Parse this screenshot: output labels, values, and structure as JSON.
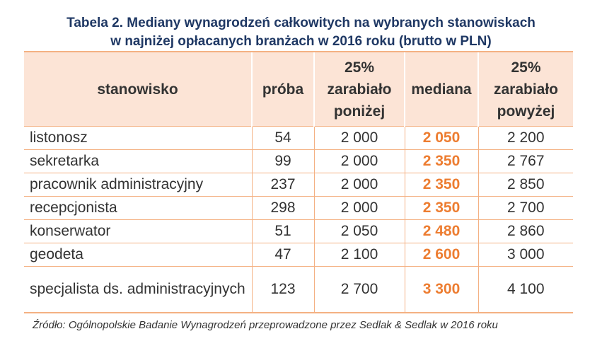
{
  "title": {
    "line1": "Tabela 2. Mediany wynagrodzeń całkowitych na wybranych stanowiskach",
    "line2": "w najniżej opłacanych branżach w 2016 roku (brutto w PLN)"
  },
  "headers": {
    "position": "stanowisko",
    "sample": "próba",
    "p25_line1": "25%",
    "p25_line2": "zarabiało",
    "p25_line3": "poniżej",
    "median": "mediana",
    "p75_line1": "25%",
    "p75_line2": "zarabiało",
    "p75_line3": "powyżej"
  },
  "rows": [
    {
      "position": "listonosz",
      "sample": "54",
      "p25": "2 000",
      "median": "2 050",
      "p75": "2 200"
    },
    {
      "position": "sekretarka",
      "sample": "99",
      "p25": "2 000",
      "median": "2 350",
      "p75": "2 767"
    },
    {
      "position": "pracownik administracyjny",
      "sample": "237",
      "p25": "2 000",
      "median": "2 350",
      "p75": "2 850"
    },
    {
      "position": "recepcjonista",
      "sample": "298",
      "p25": "2 000",
      "median": "2 350",
      "p75": "2 700"
    },
    {
      "position": "konserwator",
      "sample": "51",
      "p25": "2 050",
      "median": "2 480",
      "p75": "2 860"
    },
    {
      "position": "geodeta",
      "sample": "47",
      "p25": "2 100",
      "median": "2 600",
      "p75": "3 000"
    },
    {
      "position": "specjalista ds. administracyjnych",
      "sample": "123",
      "p25": "2 700",
      "median": "3 300",
      "p75": "4 100"
    }
  ],
  "source": "Źródło: Ogólnopolskie Badanie Wynagrodzeń przeprowadzone przez Sedlak & Sedlak w 2016 roku",
  "colors": {
    "title": "#1f3864",
    "header_bg": "#fce4d6",
    "border": "#f4b183",
    "median": "#ed7d31"
  }
}
